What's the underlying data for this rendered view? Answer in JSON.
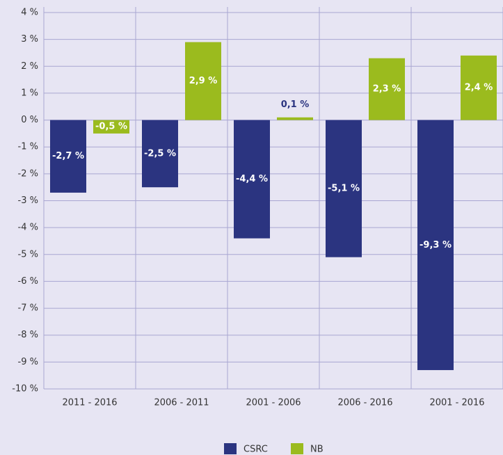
{
  "chart_data": {
    "type": "bar",
    "categories": [
      "2011 - 2016",
      "2006 - 2011",
      "2001 - 2006",
      "2006 - 2016",
      "2001 - 2016"
    ],
    "series": [
      {
        "name": "CSRC",
        "color": "#2b3480",
        "values": [
          -2.7,
          -2.5,
          -4.4,
          -5.1,
          -9.3
        ],
        "value_labels": [
          "-2,7 %",
          "-2,5 %",
          "-4,4 %",
          "-5,1 %",
          "-9,3 %"
        ]
      },
      {
        "name": "NB",
        "color": "#9bbb1e",
        "values": [
          -0.5,
          2.9,
          0.1,
          2.3,
          2.4
        ],
        "value_labels": [
          "-0,5 %",
          "2,9 %",
          "0,1 %",
          "2,3 %",
          "2,4 %"
        ]
      }
    ],
    "ylim": [
      -10,
      4
    ],
    "yticks": [
      {
        "value": -10,
        "label": "-10 %"
      },
      {
        "value": -9,
        "label": "-9 %"
      },
      {
        "value": -8,
        "label": "-8 %"
      },
      {
        "value": -7,
        "label": "-7 %"
      },
      {
        "value": -6,
        "label": "-6 %"
      },
      {
        "value": -5,
        "label": "-5 %"
      },
      {
        "value": -4,
        "label": "-4 %"
      },
      {
        "value": -3,
        "label": "-3 %"
      },
      {
        "value": -2,
        "label": "-2 %"
      },
      {
        "value": -1,
        "label": "-1 %"
      },
      {
        "value": 0,
        "label": "0 %"
      },
      {
        "value": 1,
        "label": "1 %"
      },
      {
        "value": 2,
        "label": "2 %"
      },
      {
        "value": 3,
        "label": "3 %"
      },
      {
        "value": 4,
        "label": "4 %"
      }
    ],
    "grid": true,
    "legend": "bottom"
  }
}
